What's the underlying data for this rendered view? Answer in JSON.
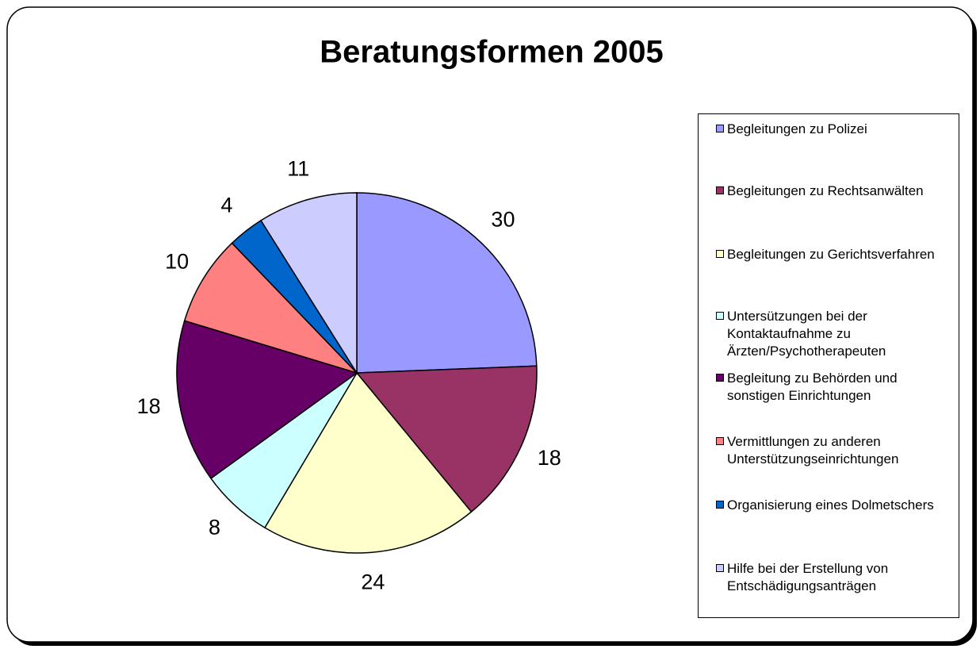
{
  "chart_data": {
    "type": "pie",
    "title": "Beratungsformen 2005",
    "categories": [
      "Begleitungen zu Polizei",
      "Begleitungen zu Rechtsanwälten",
      "Begleitungen zu Gerichtsverfahren",
      "Untersützungen bei der Kontaktaufnahme zu Ärzten/Psychotherapeuten",
      "Begleitung zu Behörden und sonstigen Einrichtungen",
      "Vermittlungen zu anderen Unterstützungseinrichtungen",
      "Organisierung eines Dolmetschers",
      "Hilfe bei der Erstellung von Entschädigungsanträgen"
    ],
    "values": [
      30,
      18,
      24,
      8,
      18,
      10,
      4,
      11
    ],
    "colors": [
      "#9999ff",
      "#993366",
      "#ffffcc",
      "#ccffff",
      "#660066",
      "#ff8080",
      "#0066cc",
      "#ccccff"
    ],
    "legend": "right"
  }
}
